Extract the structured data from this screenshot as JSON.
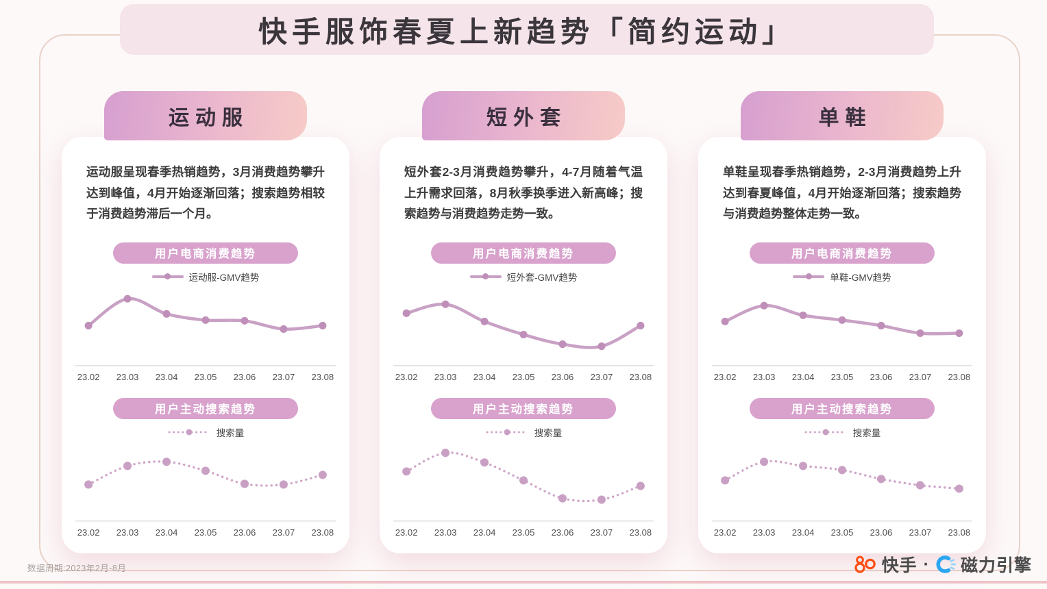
{
  "page": {
    "title": "快手服饰春夏上新趋势「简约运动」",
    "footer_note": "数据周期:2023年2月-8月"
  },
  "brand": {
    "kuaishou_label": "快手",
    "separator": "·",
    "engine_label": "磁力引擎"
  },
  "colors": {
    "title_band_bg": "#f5e4ea",
    "title_text": "#3a363b",
    "header_gradient_left": "#d69fd0",
    "header_gradient_right": "#f7cbc7",
    "pill_bg": "#d8a2cd",
    "line_solid": "#c9a1c5",
    "marker_solid": "#bf8fb9",
    "line_dotted": "#cfa5ca",
    "marker_dotted": "#c9a0c4",
    "baseline": "#e3dfdf",
    "axis_label": "#4f4f4f",
    "kuaishou_orange": "#fb4f14",
    "engine_blue": "#2ba6f0",
    "engine_blue_light": "#8ed4f8",
    "border_line": "#d8b2a0",
    "bottom_strip": "#eec3c6"
  },
  "panels": [
    {
      "title": "运动服",
      "description": "运动服呈现春季热销趋势，3月消费趋势攀升达到峰值，4月开始逐渐回落；搜索趋势相较于消费趋势滞后一个月。",
      "consumption_badge": "用户电商消费趋势",
      "consumption_legend": "运动服-GMV趋势",
      "search_badge": "用户主动搜索趋势",
      "search_legend": "搜索量"
    },
    {
      "title": "短外套",
      "description": "短外套2-3月消费趋势攀升，4-7月随着气温上升需求回落，8月秋季换季进入新高峰；搜索趋势与消费趋势走势一致。",
      "consumption_badge": "用户电商消费趋势",
      "consumption_legend": "短外套-GMV趋势",
      "search_badge": "用户主动搜索趋势",
      "search_legend": "搜索量"
    },
    {
      "title": "单鞋",
      "description": "单鞋呈现春季热销趋势，2-3月消费趋势上升达到春夏峰值，4月开始逐渐回落；搜索趋势与消费趋势整体走势一致。",
      "consumption_badge": "用户电商消费趋势",
      "consumption_legend": "单鞋-GMV趋势",
      "search_badge": "用户主动搜索趋势",
      "search_legend": "搜索量"
    }
  ],
  "chart_data": [
    {
      "type": "line",
      "panel": "运动服",
      "title": "用户电商消费趋势",
      "categories": [
        "23.02",
        "23.03",
        "23.04",
        "23.05",
        "23.06",
        "23.07",
        "23.08"
      ],
      "series": [
        {
          "name": "运动服-GMV趋势",
          "values": [
            47,
            86,
            64,
            55,
            54,
            42,
            47
          ]
        }
      ],
      "line_style": "solid",
      "xlabel": "",
      "ylabel": "",
      "ylim": [
        0,
        100
      ],
      "grid": false,
      "legend_position": "top"
    },
    {
      "type": "line",
      "panel": "运动服",
      "title": "用户主动搜索趋势",
      "categories": [
        "23.02",
        "23.03",
        "23.04",
        "23.05",
        "23.06",
        "23.07",
        "23.08"
      ],
      "series": [
        {
          "name": "搜索量",
          "values": [
            42,
            69,
            75,
            62,
            43,
            42,
            56
          ]
        }
      ],
      "line_style": "dotted",
      "xlabel": "",
      "ylabel": "",
      "ylim": [
        0,
        100
      ],
      "grid": false,
      "legend_position": "top"
    },
    {
      "type": "line",
      "panel": "短外套",
      "title": "用户电商消费趋势",
      "categories": [
        "23.02",
        "23.03",
        "23.04",
        "23.05",
        "23.06",
        "23.07",
        "23.08"
      ],
      "series": [
        {
          "name": "短外套-GMV趋势",
          "values": [
            65,
            78,
            53,
            34,
            20,
            17,
            47
          ]
        }
      ],
      "line_style": "solid",
      "xlabel": "",
      "ylabel": "",
      "ylim": [
        0,
        100
      ],
      "grid": false,
      "legend_position": "top"
    },
    {
      "type": "line",
      "panel": "短外套",
      "title": "用户主动搜索趋势",
      "categories": [
        "23.02",
        "23.03",
        "23.04",
        "23.05",
        "23.06",
        "23.07",
        "23.08"
      ],
      "series": [
        {
          "name": "搜索量",
          "values": [
            61,
            88,
            74,
            48,
            22,
            20,
            40
          ]
        }
      ],
      "line_style": "dotted",
      "xlabel": "",
      "ylabel": "",
      "ylim": [
        0,
        100
      ],
      "grid": false,
      "legend_position": "top"
    },
    {
      "type": "line",
      "panel": "单鞋",
      "title": "用户电商消费趋势",
      "categories": [
        "23.02",
        "23.03",
        "23.04",
        "23.05",
        "23.06",
        "23.07",
        "23.08"
      ],
      "series": [
        {
          "name": "单鞋-GMV趋势",
          "values": [
            53,
            76,
            62,
            55,
            47,
            36,
            36
          ]
        }
      ],
      "line_style": "solid",
      "xlabel": "",
      "ylabel": "",
      "ylim": [
        0,
        100
      ],
      "grid": false,
      "legend_position": "top"
    },
    {
      "type": "line",
      "panel": "单鞋",
      "title": "用户主动搜索趋势",
      "categories": [
        "23.02",
        "23.03",
        "23.04",
        "23.05",
        "23.06",
        "23.07",
        "23.08"
      ],
      "series": [
        {
          "name": "搜索量",
          "values": [
            48,
            75,
            69,
            63,
            50,
            41,
            36
          ]
        }
      ],
      "line_style": "dotted",
      "xlabel": "",
      "ylabel": "",
      "ylim": [
        0,
        100
      ],
      "grid": false,
      "legend_position": "top"
    }
  ]
}
